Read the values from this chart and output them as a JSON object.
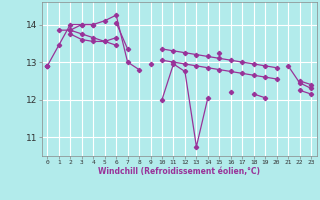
{
  "xlabel": "Windchill (Refroidissement éolien,°C)",
  "background_color": "#b2ebeb",
  "grid_color": "#ffffff",
  "line_color": "#993399",
  "xlim": [
    -0.5,
    23.5
  ],
  "ylim": [
    10.5,
    14.6
  ],
  "yticks": [
    11,
    12,
    13,
    14
  ],
  "xticks": [
    0,
    1,
    2,
    3,
    4,
    5,
    6,
    7,
    8,
    9,
    10,
    11,
    12,
    13,
    14,
    15,
    16,
    17,
    18,
    19,
    20,
    21,
    22,
    23
  ],
  "series": [
    [
      12.9,
      13.45,
      14.0,
      14.0,
      14.0,
      14.1,
      14.25,
      13.0,
      12.8,
      null,
      12.0,
      12.95,
      12.75,
      10.75,
      12.05,
      null,
      12.2,
      null,
      12.15,
      12.05,
      null,
      12.9,
      12.45,
      12.3
    ],
    [
      null,
      13.85,
      13.85,
      14.0,
      14.0,
      null,
      14.05,
      13.35,
      null,
      12.95,
      null,
      null,
      null,
      null,
      null,
      13.25,
      null,
      null,
      null,
      null,
      null,
      null,
      null,
      null
    ],
    [
      12.9,
      null,
      13.75,
      13.6,
      13.55,
      13.55,
      13.65,
      null,
      null,
      null,
      13.35,
      13.3,
      13.25,
      13.2,
      13.15,
      13.1,
      13.05,
      13.0,
      12.95,
      12.9,
      12.85,
      null,
      12.5,
      12.4
    ],
    [
      12.9,
      null,
      13.85,
      13.75,
      13.65,
      13.55,
      13.45,
      null,
      null,
      null,
      13.05,
      13.0,
      12.95,
      12.9,
      12.85,
      12.8,
      12.75,
      12.7,
      12.65,
      12.6,
      12.55,
      null,
      12.25,
      12.15
    ]
  ]
}
